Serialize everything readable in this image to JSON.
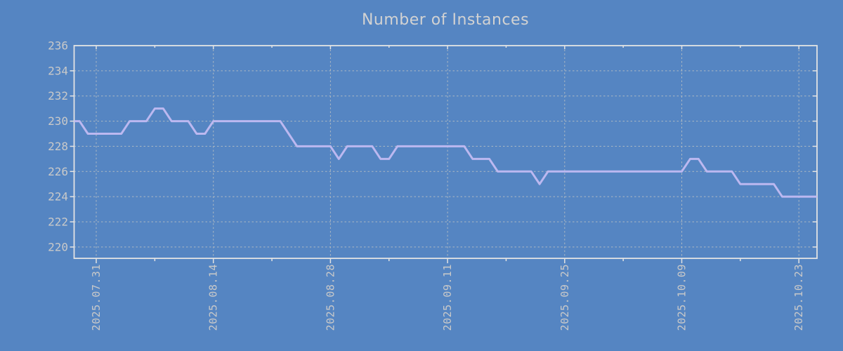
{
  "chart": {
    "title": "Number of Instances",
    "colors": {
      "background": "#5585c2",
      "line": "#bcb8f0",
      "border": "#e3e3e3",
      "grid": "#c9c9c2",
      "text": "#c9c9c9",
      "title_text": "#d2d2d2"
    }
  },
  "chart_data": {
    "type": "line",
    "title": "Number of Instances",
    "legend_position": "none",
    "grid": "dashed",
    "xlabel": "",
    "ylabel": "",
    "ylim": [
      219.1,
      236
    ],
    "y_tick_labels": [
      236,
      234,
      232,
      230,
      228,
      226,
      224,
      222,
      220
    ],
    "x_tick_labels": [
      "2025.07.31",
      "2025.08.14",
      "2025.08.28",
      "2025.09.11",
      "2025.09.25",
      "2025.10.09",
      "2025.10.23"
    ],
    "x": [
      "2025.07.28",
      "2025.07.29",
      "2025.07.30",
      "2025.07.31",
      "2025.08.01",
      "2025.08.02",
      "2025.08.03",
      "2025.08.04",
      "2025.08.05",
      "2025.08.06",
      "2025.08.07",
      "2025.08.08",
      "2025.08.09",
      "2025.08.10",
      "2025.08.11",
      "2025.08.12",
      "2025.08.13",
      "2025.08.14",
      "2025.08.15",
      "2025.08.16",
      "2025.08.17",
      "2025.08.18",
      "2025.08.19",
      "2025.08.20",
      "2025.08.21",
      "2025.08.22",
      "2025.08.23",
      "2025.08.24",
      "2025.08.25",
      "2025.08.26",
      "2025.08.27",
      "2025.08.28",
      "2025.08.29",
      "2025.08.30",
      "2025.08.31",
      "2025.09.01",
      "2025.09.02",
      "2025.09.03",
      "2025.09.04",
      "2025.09.05",
      "2025.09.06",
      "2025.09.07",
      "2025.09.08",
      "2025.09.09",
      "2025.09.10",
      "2025.09.11",
      "2025.09.12",
      "2025.09.13",
      "2025.09.14",
      "2025.09.15",
      "2025.09.16",
      "2025.09.17",
      "2025.09.18",
      "2025.09.19",
      "2025.09.20",
      "2025.09.21",
      "2025.09.22",
      "2025.09.23",
      "2025.09.24",
      "2025.09.25",
      "2025.09.26",
      "2025.09.27",
      "2025.09.28",
      "2025.09.29",
      "2025.09.30",
      "2025.10.01",
      "2025.10.02",
      "2025.10.03",
      "2025.10.04",
      "2025.10.05",
      "2025.10.06",
      "2025.10.07",
      "2025.10.08",
      "2025.10.09",
      "2025.10.10",
      "2025.10.11",
      "2025.10.12",
      "2025.10.13",
      "2025.10.14",
      "2025.10.15",
      "2025.10.16",
      "2025.10.17",
      "2025.10.18",
      "2025.10.19",
      "2025.10.20",
      "2025.10.21",
      "2025.10.22",
      "2025.10.23",
      "2025.10.24",
      "2025.10.25"
    ],
    "values": [
      230,
      230,
      229,
      229,
      229,
      229,
      229,
      230,
      230,
      230,
      231,
      231,
      230,
      230,
      230,
      229,
      229,
      230,
      230,
      230,
      230,
      230,
      230,
      230,
      230,
      230,
      229,
      228,
      228,
      228,
      228,
      228,
      227,
      228,
      228,
      228,
      228,
      227,
      227,
      228,
      228,
      228,
      228,
      228,
      228,
      228,
      228,
      228,
      227,
      227,
      227,
      226,
      226,
      226,
      226,
      226,
      225,
      226,
      226,
      226,
      226,
      226,
      226,
      226,
      226,
      226,
      226,
      226,
      226,
      226,
      226,
      226,
      226,
      226,
      227,
      227,
      226,
      226,
      226,
      226,
      225,
      225,
      225,
      225,
      225,
      224,
      224,
      224,
      224,
      224
    ]
  }
}
